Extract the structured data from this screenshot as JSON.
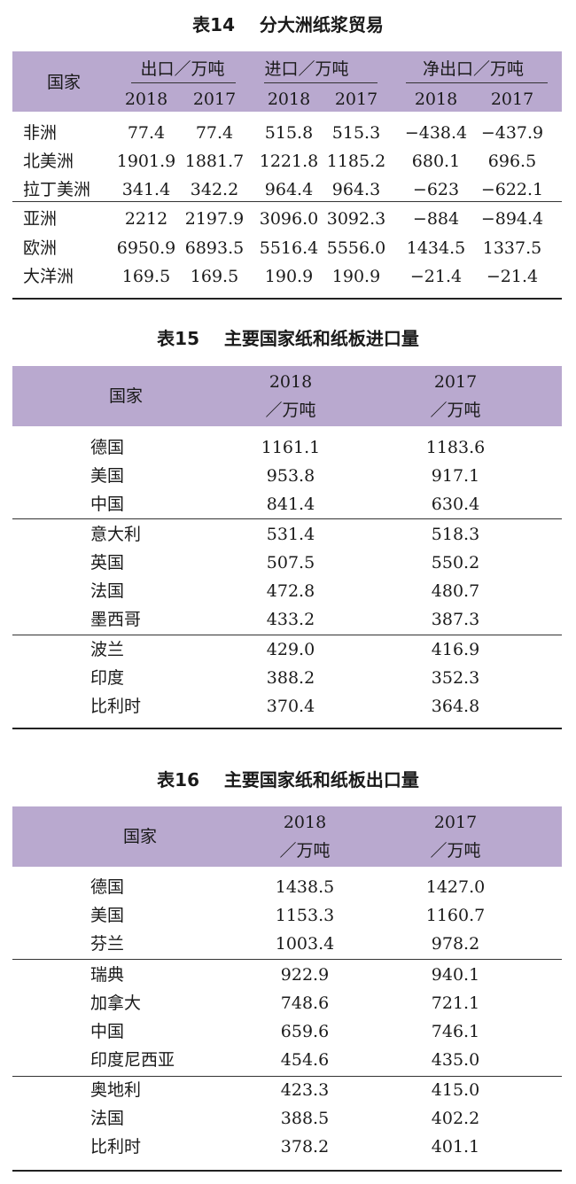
{
  "table14": {
    "title": "表14    分大洲纸浆贸易",
    "col_country": "国家",
    "groups": [
      "出口／万吨",
      "进口／万吨",
      "净出口／万吨"
    ],
    "years": [
      "2018",
      "2017",
      "2018",
      "2017",
      "2018",
      "2017"
    ],
    "rows": [
      [
        "非洲",
        "77.4",
        "77.4",
        "515.8",
        "515.3",
        "−438.4",
        "−437.9"
      ],
      [
        "北美洲",
        "1901.9",
        "1881.7",
        "1221.8",
        "1185.2",
        "680.1",
        "696.5"
      ],
      [
        "拉丁美洲",
        "341.4",
        "342.2",
        "964.4",
        "964.3",
        "−623",
        "−622.1"
      ],
      [
        "亚洲",
        "2212",
        "2197.9",
        "3096.0",
        "3092.3",
        "−884",
        "−894.4"
      ],
      [
        "欧洲",
        "6950.9",
        "6893.5",
        "5516.4",
        "5556.0",
        "1434.5",
        "1337.5"
      ],
      [
        "大洋洲",
        "169.5",
        "169.5",
        "190.9",
        "190.9",
        "−21.4",
        "−21.4"
      ]
    ]
  },
  "table15": {
    "title": "表15    主要国家纸和纸板进口量",
    "col_country": "国家",
    "col_2018_year": "2018",
    "col_2018_unit": "／万吨",
    "col_2017_year": "2017",
    "col_2017_unit": "／万吨",
    "rows": [
      [
        "德国",
        "1161.1",
        "1183.6"
      ],
      [
        "美国",
        "953.8",
        "917.1"
      ],
      [
        "中国",
        "841.4",
        "630.4"
      ],
      [
        "意大利",
        "531.4",
        "518.3"
      ],
      [
        "英国",
        "507.5",
        "550.2"
      ],
      [
        "法国",
        "472.8",
        "480.7"
      ],
      [
        "墨西哥",
        "433.2",
        "387.3"
      ],
      [
        "波兰",
        "429.0",
        "416.9"
      ],
      [
        "印度",
        "388.2",
        "352.3"
      ],
      [
        "比利时",
        "370.4",
        "364.8"
      ]
    ]
  },
  "table16": {
    "title": "表16    主要国家纸和纸板出口量",
    "col_country": "国家",
    "col_2018_year": "2018",
    "col_2018_unit": "／万吨",
    "col_2017_year": "2017",
    "col_2017_unit": "／万吨",
    "rows": [
      [
        "德国",
        "1438.5",
        "1427.0"
      ],
      [
        "美国",
        "1153.3",
        "1160.7"
      ],
      [
        "芬兰",
        "1003.4",
        "978.2"
      ],
      [
        "瑞典",
        "922.9",
        "940.1"
      ],
      [
        "加拿大",
        "748.6",
        "721.1"
      ],
      [
        "中国",
        "659.6",
        "746.1"
      ],
      [
        "印度尼西亚",
        "454.6",
        "435.0"
      ],
      [
        "奥地利",
        "423.3",
        "415.0"
      ],
      [
        "法国",
        "388.5",
        "402.2"
      ],
      [
        "比利时",
        "378.2",
        "401.1"
      ]
    ]
  },
  "colors": {
    "header_band": "#b9a9cf",
    "rule": "#333333"
  }
}
